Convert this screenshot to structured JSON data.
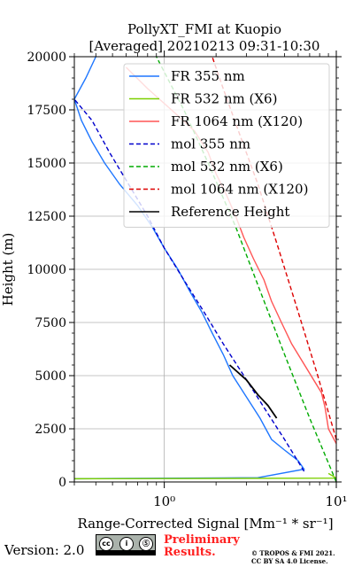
{
  "chart_data": {
    "type": "line",
    "title": "PollyXT_FMI at Kuopio",
    "subtitle": "[Averaged] 20210213 09:31-10:30",
    "xlabel": "Range-Corrected Signal [Mm⁻¹ * sr⁻¹]",
    "ylabel": "Height (m)",
    "xscale": "log",
    "xlim": [
      0.3,
      10
    ],
    "ylim": [
      0,
      20000
    ],
    "xticks": [
      1,
      10
    ],
    "xtick_labels": [
      "10⁰",
      "10¹"
    ],
    "yticks": [
      0,
      2500,
      5000,
      7500,
      10000,
      12500,
      15000,
      17500,
      20000
    ],
    "ytick_labels": [
      "0",
      "2500",
      "5000",
      "7500",
      "10000",
      "12500",
      "15000",
      "17500",
      "20000"
    ],
    "grid": true,
    "legend_position": "top-right",
    "series": [
      {
        "name": "FR 355 nm",
        "color": "#1f77ff",
        "style": "solid",
        "points": [
          [
            0.28,
            150
          ],
          [
            3.5,
            200
          ],
          [
            6.5,
            600
          ],
          [
            6.0,
            1000
          ],
          [
            5.0,
            1500
          ],
          [
            4.2,
            2000
          ],
          [
            3.6,
            3000
          ],
          [
            3.0,
            4000
          ],
          [
            2.5,
            5000
          ],
          [
            2.2,
            6000
          ],
          [
            1.9,
            7000
          ],
          [
            1.65,
            8000
          ],
          [
            1.4,
            9000
          ],
          [
            1.2,
            10000
          ],
          [
            1.0,
            11000
          ],
          [
            0.85,
            12000
          ],
          [
            0.7,
            13000
          ],
          [
            0.55,
            14000
          ],
          [
            0.45,
            15000
          ],
          [
            0.38,
            16000
          ],
          [
            0.33,
            17000
          ],
          [
            0.3,
            18000
          ],
          [
            0.35,
            19000
          ],
          [
            0.4,
            20000
          ]
        ]
      },
      {
        "name": "FR 532 nm (X6)",
        "color": "#7ccf00",
        "style": "solid",
        "points": [
          [
            0.28,
            150
          ],
          [
            10.0,
            180
          ],
          [
            9.0,
            400
          ]
        ]
      },
      {
        "name": "FR 1064 nm (X120)",
        "color": "#ff5555",
        "style": "solid",
        "points": [
          [
            10.0,
            1800
          ],
          [
            9.0,
            2500
          ],
          [
            8.6,
            3500
          ],
          [
            8.2,
            4200
          ],
          [
            5.5,
            6500
          ],
          [
            4.8,
            7500
          ],
          [
            4.2,
            8500
          ],
          [
            3.8,
            9500
          ],
          [
            3.3,
            10500
          ],
          [
            2.9,
            11500
          ],
          [
            2.6,
            12500
          ],
          [
            2.3,
            13500
          ],
          [
            2.0,
            14500
          ],
          [
            1.8,
            15500
          ],
          [
            1.5,
            16500
          ],
          [
            1.1,
            17500
          ],
          [
            0.8,
            18500
          ],
          [
            0.6,
            19500
          ]
        ]
      },
      {
        "name": "mol 355 nm",
        "color": "#0000cc",
        "style": "dashed",
        "points": [
          [
            6.5,
            500
          ],
          [
            5.0,
            2000
          ],
          [
            3.8,
            3500
          ],
          [
            2.9,
            5000
          ],
          [
            2.2,
            6500
          ],
          [
            1.7,
            8000
          ],
          [
            1.3,
            9500
          ],
          [
            1.0,
            11000
          ],
          [
            0.8,
            12500
          ],
          [
            0.62,
            14000
          ],
          [
            0.48,
            15500
          ],
          [
            0.38,
            17000
          ],
          [
            0.3,
            18000
          ]
        ]
      },
      {
        "name": "mol 532 nm (X6)",
        "color": "#00aa00",
        "style": "dashed",
        "points": [
          [
            10.0,
            0
          ],
          [
            7.0,
            3000
          ],
          [
            5.0,
            6000
          ],
          [
            3.6,
            9000
          ],
          [
            2.6,
            12000
          ],
          [
            1.8,
            15000
          ],
          [
            1.3,
            17500
          ],
          [
            0.9,
            20000
          ]
        ]
      },
      {
        "name": "mol 1064 nm (X120)",
        "color": "#dd0000",
        "style": "dashed",
        "points": [
          [
            10.0,
            2000
          ],
          [
            7.8,
            5000
          ],
          [
            6.0,
            8000
          ],
          [
            4.6,
            11000
          ],
          [
            3.5,
            14000
          ],
          [
            2.7,
            16500
          ],
          [
            2.2,
            18500
          ],
          [
            1.9,
            20000
          ]
        ]
      },
      {
        "name": "Reference Height",
        "color": "#000000",
        "style": "solid",
        "points": [
          [
            2.4,
            5500
          ],
          [
            3.0,
            4800
          ],
          [
            3.5,
            4100
          ],
          [
            4.0,
            3600
          ],
          [
            4.5,
            3000
          ]
        ]
      }
    ]
  },
  "footer": {
    "version": "Version: 2.0",
    "license_badge": {
      "circles": [
        "cc",
        "i",
        "Ⓢ"
      ],
      "strip_labels": [
        "BY",
        "SA"
      ]
    },
    "preliminary_line1": "Preliminary",
    "preliminary_line2": "Results.",
    "copyright_line1": "© TROPOS & FMI 2021.",
    "copyright_line2": "CC BY SA 4.0 License."
  }
}
